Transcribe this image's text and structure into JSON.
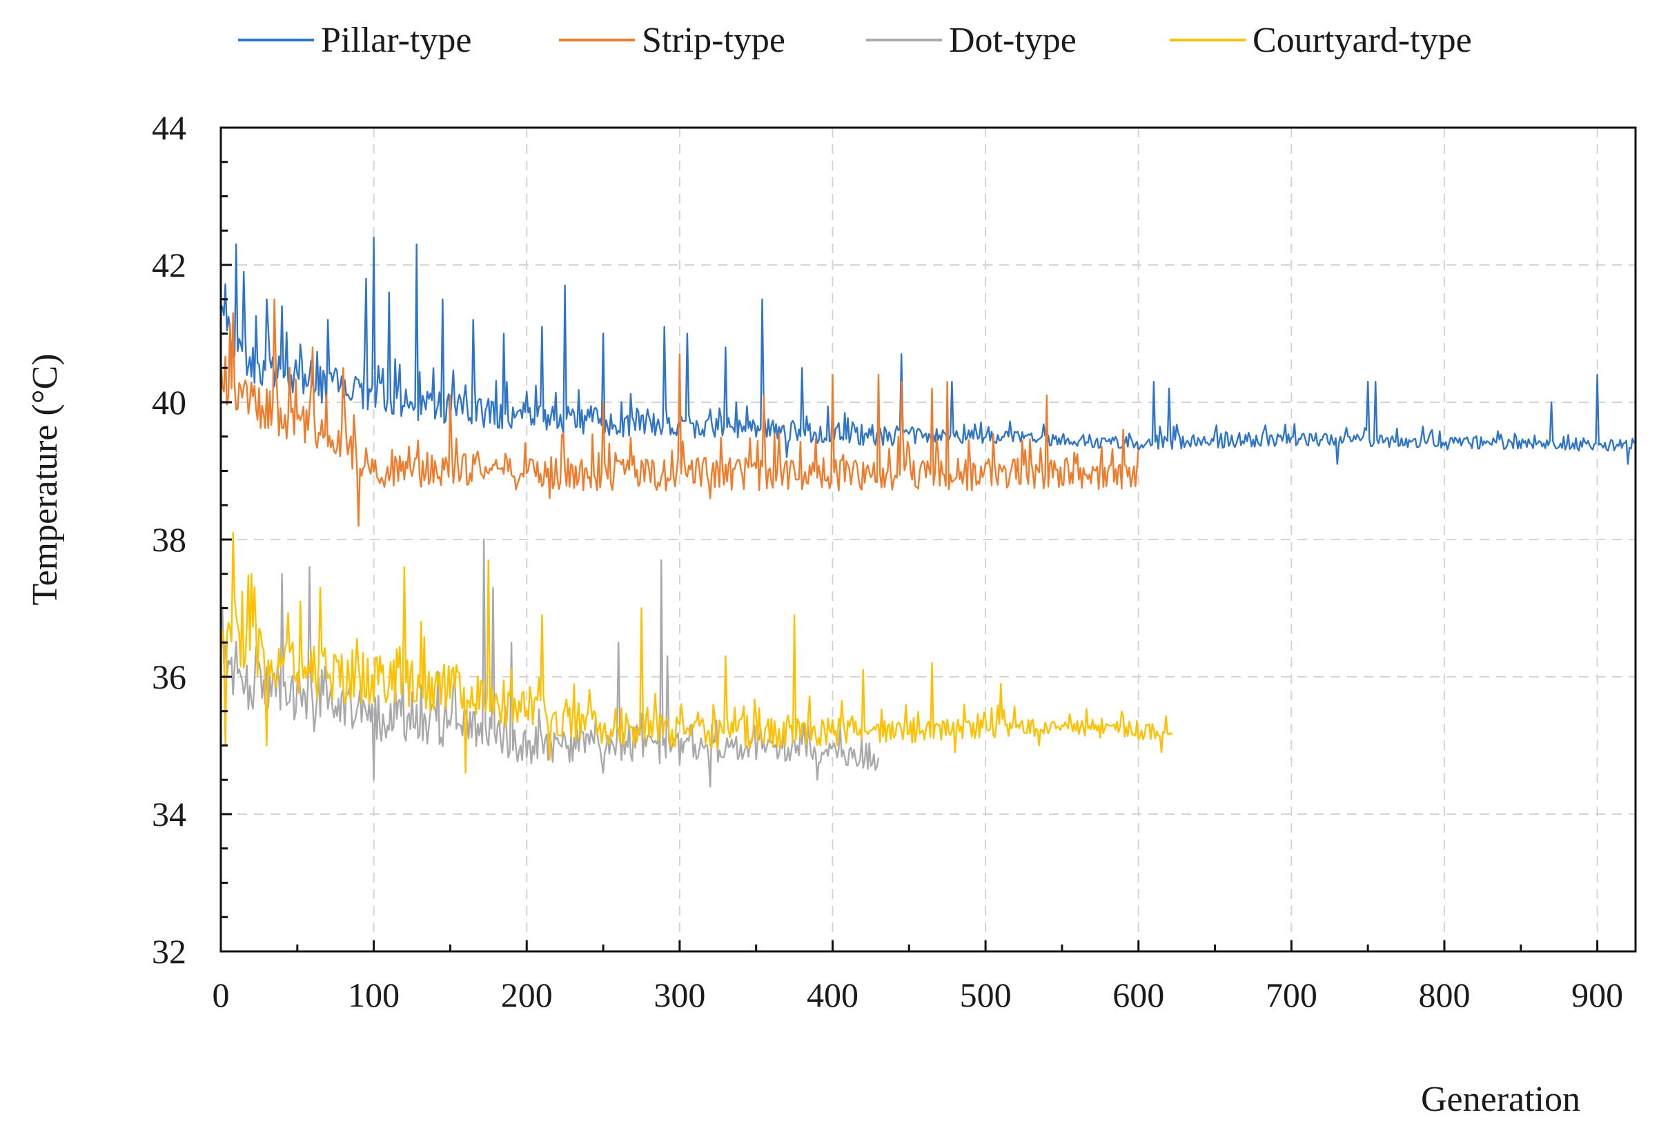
{
  "chart_data": {
    "type": "line",
    "title": "",
    "xlabel": "Generation",
    "ylabel": "Temperature (°C)",
    "xlim": [
      0,
      925
    ],
    "ylim": [
      32,
      44
    ],
    "xticks": [
      0,
      100,
      200,
      300,
      400,
      500,
      600,
      700,
      800,
      900
    ],
    "xtick_labels": [
      "0",
      "100",
      "200",
      "300",
      "400",
      "500",
      "600",
      "700",
      "800",
      "900"
    ],
    "yticks": [
      32,
      34,
      36,
      38,
      40,
      42,
      44
    ],
    "ytick_labels": [
      "32",
      "34",
      "36",
      "38",
      "40",
      "42",
      "44"
    ],
    "grid": true,
    "legend_position": "top",
    "series": [
      {
        "name": "Pillar-type",
        "color": "#2E75C9",
        "length": 925,
        "x": [
          0,
          5,
          10,
          20,
          40,
          60,
          80,
          100,
          120,
          150,
          200,
          250,
          300,
          350,
          400,
          450,
          500,
          550,
          600,
          650,
          700,
          750,
          800,
          850,
          900,
          925
        ],
        "y": [
          41.4,
          41.0,
          40.7,
          40.6,
          40.4,
          40.3,
          40.2,
          40.1,
          40.0,
          39.9,
          39.8,
          39.7,
          39.65,
          39.6,
          39.55,
          39.5,
          39.5,
          39.45,
          39.4,
          39.45,
          39.45,
          39.45,
          39.4,
          39.4,
          39.35,
          39.4
        ],
        "noise": [
          0.45,
          0.45,
          0.45,
          0.4,
          0.35,
          0.35,
          0.35,
          0.35,
          0.3,
          0.3,
          0.25,
          0.25,
          0.2,
          0.2,
          0.2,
          0.18,
          0.12,
          0.12,
          0.12,
          0.15,
          0.12,
          0.12,
          0.12,
          0.1,
          0.1,
          0.1
        ],
        "spikes": [
          [
            10,
            42.3
          ],
          [
            15,
            41.9
          ],
          [
            30,
            41.5
          ],
          [
            40,
            41.4
          ],
          [
            70,
            41.2
          ],
          [
            95,
            41.8
          ],
          [
            100,
            42.4
          ],
          [
            110,
            41.6
          ],
          [
            128,
            42.3
          ],
          [
            145,
            41.5
          ],
          [
            165,
            41.2
          ],
          [
            185,
            41.0
          ],
          [
            210,
            41.1
          ],
          [
            225,
            41.7
          ],
          [
            250,
            41.0
          ],
          [
            290,
            41.1
          ],
          [
            305,
            41.0
          ],
          [
            330,
            40.8
          ],
          [
            354,
            41.5
          ],
          [
            380,
            40.5
          ],
          [
            445,
            40.7
          ],
          [
            478,
            40.3
          ],
          [
            600,
            40.4
          ],
          [
            610,
            40.3
          ],
          [
            620,
            40.2
          ],
          [
            750,
            40.3
          ],
          [
            755,
            40.3
          ],
          [
            870,
            40.0
          ],
          [
            900,
            40.4
          ]
        ],
        "dips": [
          [
            370,
            39.2
          ],
          [
            600,
            39.3
          ],
          [
            730,
            39.1
          ],
          [
            920,
            39.1
          ]
        ],
        "seed": 11
      },
      {
        "name": "Strip-type",
        "color": "#F07B2A",
        "length": 600,
        "x": [
          0,
          5,
          10,
          20,
          40,
          60,
          80,
          90,
          100,
          130,
          170,
          200,
          250,
          300,
          350,
          400,
          450,
          500,
          550,
          600
        ],
        "y": [
          40.4,
          40.3,
          40.1,
          40.0,
          39.8,
          39.6,
          39.4,
          39.2,
          39.0,
          39.0,
          39.0,
          38.95,
          38.95,
          38.95,
          38.95,
          38.95,
          38.95,
          38.95,
          38.95,
          38.9
        ],
        "noise": [
          0.45,
          0.45,
          0.45,
          0.4,
          0.4,
          0.35,
          0.35,
          0.3,
          0.3,
          0.3,
          0.3,
          0.3,
          0.3,
          0.3,
          0.3,
          0.3,
          0.3,
          0.3,
          0.25,
          0.25
        ],
        "spikes": [
          [
            8,
            41.3
          ],
          [
            35,
            41.5
          ],
          [
            60,
            40.8
          ],
          [
            80,
            40.5
          ],
          [
            150,
            40.1
          ],
          [
            215,
            40.1
          ],
          [
            250,
            40.0
          ],
          [
            300,
            40.7
          ],
          [
            355,
            40.1
          ],
          [
            400,
            40.4
          ],
          [
            430,
            40.4
          ],
          [
            445,
            40.3
          ],
          [
            465,
            40.2
          ],
          [
            475,
            40.3
          ],
          [
            540,
            40.1
          ],
          [
            590,
            39.6
          ]
        ],
        "dips": [
          [
            90,
            38.2
          ],
          [
            215,
            38.6
          ],
          [
            320,
            38.6
          ]
        ],
        "seed": 23
      },
      {
        "name": "Dot-type",
        "color": "#A9A9A9",
        "length": 430,
        "x": [
          0,
          5,
          20,
          40,
          60,
          80,
          100,
          150,
          200,
          250,
          300,
          350,
          400,
          430
        ],
        "y": [
          36.2,
          36.0,
          35.8,
          35.7,
          35.6,
          35.5,
          35.4,
          35.3,
          35.0,
          35.0,
          34.95,
          34.95,
          34.9,
          34.75
        ],
        "noise": [
          0.55,
          0.5,
          0.5,
          0.5,
          0.5,
          0.45,
          0.45,
          0.4,
          0.35,
          0.3,
          0.3,
          0.2,
          0.2,
          0.15
        ],
        "spikes": [
          [
            40,
            37.5
          ],
          [
            58,
            37.6
          ],
          [
            172,
            38.0
          ],
          [
            178,
            37.3
          ],
          [
            190,
            36.5
          ],
          [
            260,
            36.5
          ],
          [
            288,
            37.7
          ],
          [
            292,
            36.3
          ]
        ],
        "dips": [
          [
            100,
            34.5
          ],
          [
            250,
            34.6
          ],
          [
            320,
            34.4
          ],
          [
            390,
            34.5
          ]
        ],
        "seed": 37
      },
      {
        "name": "Courtyard-type",
        "color": "#FFC000",
        "length": 622,
        "x": [
          0,
          5,
          10,
          20,
          40,
          60,
          80,
          100,
          130,
          160,
          200,
          250,
          300,
          350,
          400,
          450,
          500,
          550,
          600,
          622
        ],
        "y": [
          35.5,
          36.4,
          36.5,
          36.4,
          36.2,
          36.1,
          36.0,
          36.0,
          35.9,
          35.8,
          35.5,
          35.3,
          35.2,
          35.2,
          35.2,
          35.2,
          35.25,
          35.25,
          35.2,
          35.2
        ],
        "noise": [
          0.5,
          0.55,
          0.55,
          0.55,
          0.5,
          0.5,
          0.5,
          0.5,
          0.5,
          0.45,
          0.4,
          0.35,
          0.3,
          0.3,
          0.25,
          0.2,
          0.18,
          0.15,
          0.15,
          0.15
        ],
        "spikes": [
          [
            8,
            38.1
          ],
          [
            20,
            37.5
          ],
          [
            65,
            37.3
          ],
          [
            120,
            37.6
          ],
          [
            160,
            37.5
          ],
          [
            175,
            37.7
          ],
          [
            210,
            36.9
          ],
          [
            275,
            37.0
          ],
          [
            330,
            36.3
          ],
          [
            375,
            36.9
          ],
          [
            420,
            36.1
          ],
          [
            465,
            36.2
          ],
          [
            510,
            35.9
          ]
        ],
        "dips": [
          [
            3,
            35.0
          ],
          [
            30,
            35.0
          ],
          [
            160,
            34.6
          ],
          [
            215,
            34.8
          ],
          [
            480,
            34.9
          ],
          [
            535,
            35.0
          ],
          [
            615,
            34.9
          ]
        ],
        "seed": 53
      }
    ]
  }
}
